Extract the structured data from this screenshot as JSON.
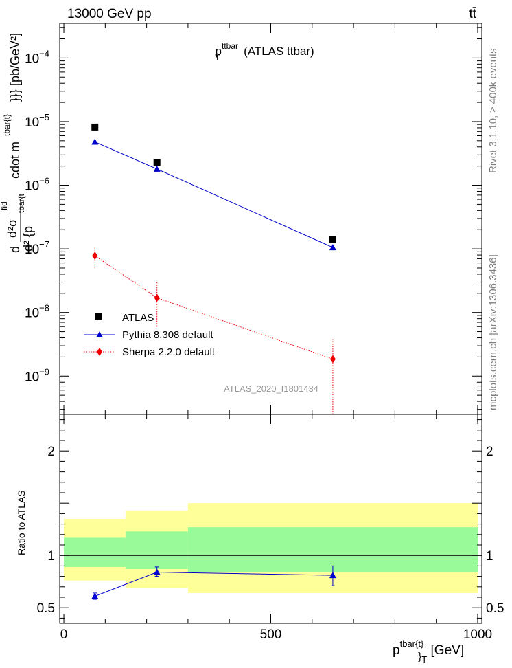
{
  "header": {
    "left": "13000 GeV pp",
    "right": "tt̄"
  },
  "side": {
    "rivet": "Rivet 3.1.10, ≥ 400k events",
    "arxiv": "mcplots.cern.ch [arXiv:1306.3436]"
  },
  "chart_data": {
    "type": "scatter",
    "title_main": "p",
    "title_sup": "ttbar",
    "title_sub": "T",
    "title_rest": " (ATLAS ttbar)",
    "watermark": "ATLAS_2020_I1801434",
    "xlim": [
      -10,
      1010
    ],
    "x_ticks": [
      0,
      500,
      1000
    ],
    "x_tick_labels": [
      "0",
      "500",
      "1000"
    ],
    "xlabel_main": "p",
    "xlabel_sup": "tbar{t}",
    "xlabel_sub": "}",
    "xlabel_subsub": "T",
    "xlabel_unit": " [GeV]",
    "main": {
      "yscale": "log",
      "ylim": [
        2.5e-10,
        0.00035
      ],
      "y_ticks": [
        1e-09,
        1e-08,
        1e-07,
        1e-06,
        1e-05,
        0.0001
      ],
      "y_tick_labels": [
        {
          "base": "10",
          "exp": "−9"
        },
        {
          "base": "10",
          "exp": "−8"
        },
        {
          "base": "10",
          "exp": "−7"
        },
        {
          "base": "10",
          "exp": "−6"
        },
        {
          "base": "10",
          "exp": "−5"
        },
        {
          "base": "10",
          "exp": "−4"
        }
      ],
      "ylabel_lines": [
        "d",
        "d²σ",
        "fid",
        "d² {p",
        "tbar{t",
        "cdot m",
        "tbar{t}",
        "}}} [pb/GeV²]"
      ],
      "series": [
        {
          "name": "ATLAS",
          "color": "#000000",
          "marker": "square",
          "line": "none",
          "x": [
            75,
            225,
            650
          ],
          "y": [
            8.2e-06,
            2.3e-06,
            1.4e-07
          ]
        },
        {
          "name": "Pythia 8.308 default",
          "color": "#0000cc",
          "marker": "triangle",
          "line": "solid",
          "x": [
            75,
            225,
            650
          ],
          "y": [
            4.8e-06,
            1.8e-06,
            1.05e-07
          ],
          "err_lo": [
            4.6e-06,
            1.75e-06,
            9.5e-08
          ],
          "err_hi": [
            5e-06,
            1.85e-06,
            1.15e-07
          ]
        },
        {
          "name": "Sherpa 2.2.0 default",
          "color": "#ee0000",
          "marker": "diamond",
          "line": "dotted",
          "x": [
            75,
            225,
            650
          ],
          "y": [
            7.8e-08,
            1.7e-08,
            1.85e-09
          ],
          "err_lo": [
            5e-08,
            6e-09,
            2.5e-10
          ],
          "err_hi": [
            1.05e-07,
            3e-08,
            3.8e-09
          ]
        }
      ]
    },
    "ratio": {
      "ylabel": "Ratio to ATLAS",
      "ylim": [
        0.35,
        2.35
      ],
      "y_ticks": [
        0.5,
        1,
        2
      ],
      "y_tick_labels": [
        "0.5",
        "1",
        "2"
      ],
      "bands": [
        {
          "x0": 0,
          "x1": 150,
          "green": [
            0.89,
            1.17
          ],
          "yellow": [
            0.76,
            1.35
          ]
        },
        {
          "x0": 150,
          "x1": 300,
          "green": [
            0.87,
            1.23
          ],
          "yellow": [
            0.69,
            1.43
          ]
        },
        {
          "x0": 300,
          "x1": 1000,
          "green": [
            0.84,
            1.27
          ],
          "yellow": [
            0.64,
            1.5
          ]
        }
      ],
      "series": [
        {
          "name": "Pythia 8.308 default",
          "color": "#0000cc",
          "x": [
            75,
            225,
            650
          ],
          "y": [
            0.61,
            0.84,
            0.81
          ],
          "err_lo": [
            0.58,
            0.8,
            0.71
          ],
          "err_hi": [
            0.64,
            0.89,
            0.9
          ]
        }
      ]
    },
    "colors": {
      "green": "#99fa99",
      "yellow": "#ffff99",
      "axis": "#000000",
      "side_text": "#808080",
      "watermark": "#999999"
    }
  }
}
